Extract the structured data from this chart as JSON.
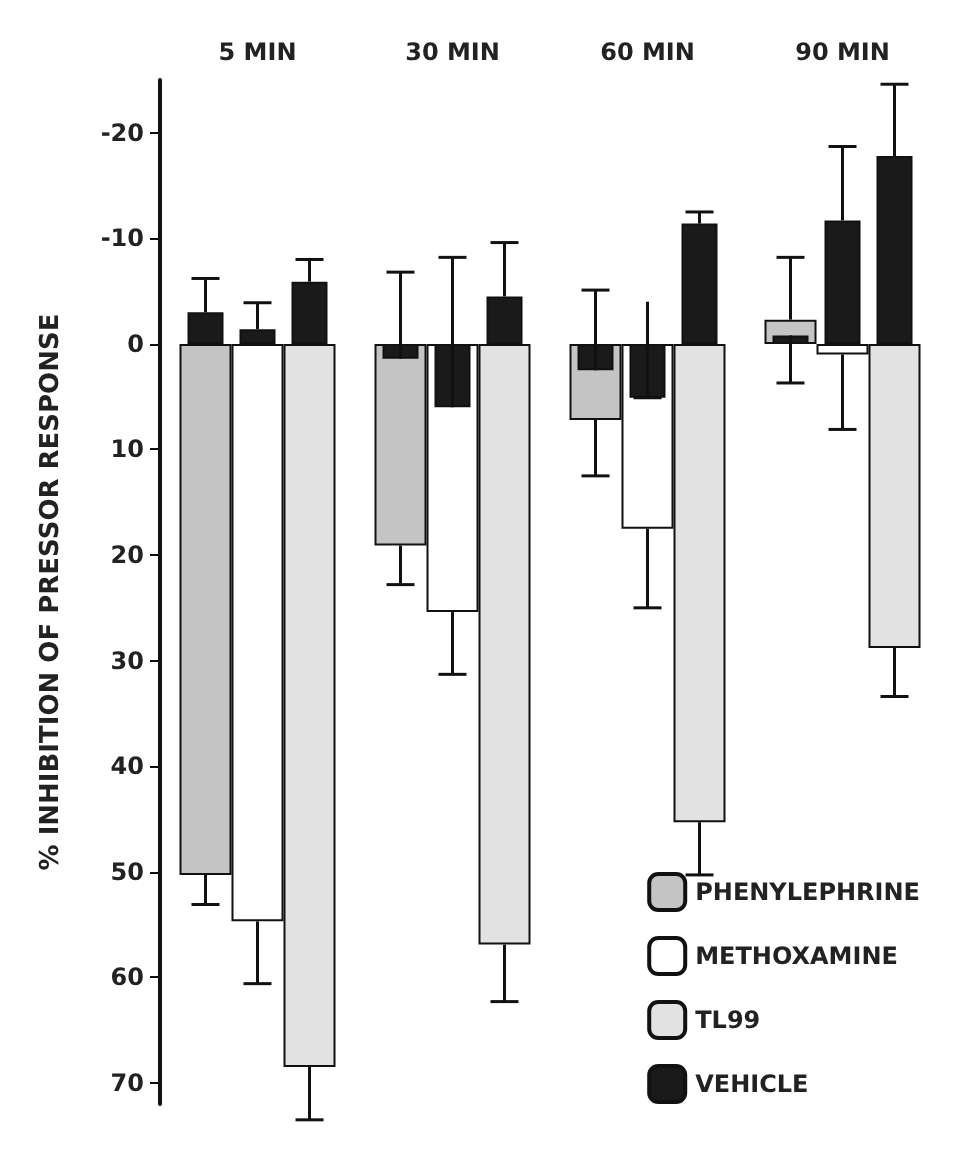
{
  "chart_data": {
    "type": "bar",
    "ylabel": "% INHIBITION OF PRESSOR RESPONSE",
    "categories": [
      "5 MIN",
      "30 MIN",
      "60 MIN",
      "90 MIN"
    ],
    "series": [
      {
        "name": "PHENYLEPHRINE",
        "color": "#c4c4c4",
        "values": [
          50.3,
          19.1,
          7.2,
          -2.3
        ],
        "errors": [
          [
            50.3,
            53.1
          ],
          [
            19.1,
            22.8
          ],
          [
            7.2,
            12.5
          ],
          [
            -8.2,
            -2.3
          ]
        ]
      },
      {
        "name": "METHOXAMINE",
        "color": "#ffffff",
        "values": [
          54.7,
          25.4,
          17.5,
          1.0
        ],
        "errors": [
          [
            54.7,
            60.6
          ],
          [
            25.4,
            31.3
          ],
          [
            17.5,
            25.0
          ],
          [
            1.0,
            8.1
          ]
        ]
      },
      {
        "name": "TL99",
        "color": "#e2e2e2",
        "values": [
          68.5,
          56.9,
          45.3,
          28.8
        ],
        "errors": [
          [
            68.5,
            73.5
          ],
          [
            56.9,
            62.3
          ],
          [
            45.3,
            50.3
          ],
          [
            28.8,
            33.4
          ]
        ]
      },
      {
        "name": "VEHICLE",
        "color": "#1a1a1a",
        "values": [
          -3.0,
          1.4,
          2.5,
          -0.8
        ],
        "errors": [
          [
            -6.2,
            -3.0
          ],
          [
            -6.8,
            1.4
          ],
          [
            -5.1,
            2.5
          ],
          [
            -0.8,
            3.7
          ]
        ]
      },
      {
        "color": "#1a1a1a",
        "values": [
          -1.4,
          6.0,
          5.1,
          -11.7
        ],
        "errors": [
          [
            -3.9,
            -1.4
          ],
          [
            -8.2,
            6.0
          ],
          [
            -4.0,
            5.1
          ],
          [
            -18.7,
            -11.7
          ]
        ]
      },
      {
        "color": "#1a1a1a",
        "values": [
          -5.9,
          -4.5,
          -11.4,
          -17.8
        ],
        "errors": [
          [
            -8.0,
            -5.9
          ],
          [
            -9.6,
            -4.5
          ],
          [
            -12.5,
            -11.4
          ],
          [
            -24.6,
            -17.8
          ]
        ]
      }
    ],
    "ylim": [
      72,
      -25
    ],
    "yticks": [
      -20,
      -10,
      0,
      10,
      20,
      30,
      40,
      50,
      60,
      70
    ],
    "legend": "bottom right"
  }
}
